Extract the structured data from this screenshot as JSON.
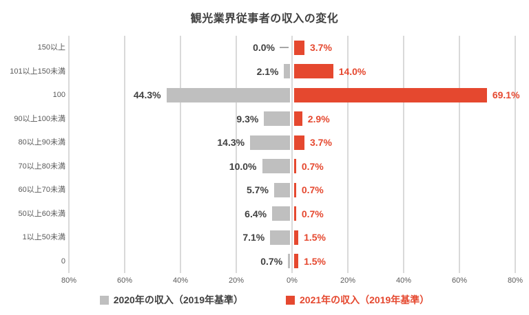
{
  "title": "観光業界従事者の収入の変化",
  "colors": {
    "bar_2020": "#bfbfbf",
    "bar_2021": "#e5482f",
    "label_2020_text": "#404040",
    "label_2021_text": "#e5482f",
    "axis_text": "#595959",
    "gridline": "#d9d9d9",
    "leader_line": "#a6a6a6"
  },
  "legend": {
    "items": [
      {
        "label": "2020年の収入（2019年基準）",
        "color": "#bfbfbf",
        "text_color": "#404040"
      },
      {
        "label": "2021年の収入（2019年基準）",
        "color": "#e5482f",
        "text_color": "#e5482f"
      }
    ]
  },
  "chart_data": {
    "type": "bar",
    "orientation": "horizontal-diverging",
    "title": "観光業界従事者の収入の変化",
    "categories": [
      "150以上",
      "101以上150未満",
      "100",
      "90以上100未満",
      "80以上90未満",
      "70以上80未満",
      "60以上70未満",
      "50以上60未満",
      "1以上50未満",
      "0"
    ],
    "series": [
      {
        "name": "2020年の収入（2019年基準）",
        "direction": "left",
        "values": [
          0.0,
          2.1,
          44.3,
          9.3,
          14.3,
          10.0,
          5.7,
          6.4,
          7.1,
          0.7
        ]
      },
      {
        "name": "2021年の収入（2019年基準）",
        "direction": "right",
        "values": [
          3.7,
          14.0,
          69.1,
          2.9,
          3.7,
          0.7,
          0.7,
          0.7,
          1.5,
          1.5
        ]
      }
    ],
    "value_suffix": "%",
    "value_decimals": 1,
    "x_ticks": [
      "80%",
      "60%",
      "40%",
      "20%",
      "0%",
      "20%",
      "40%",
      "60%",
      "80%"
    ],
    "xlim_each_side": 80,
    "grid": true,
    "legend_position": "bottom"
  }
}
